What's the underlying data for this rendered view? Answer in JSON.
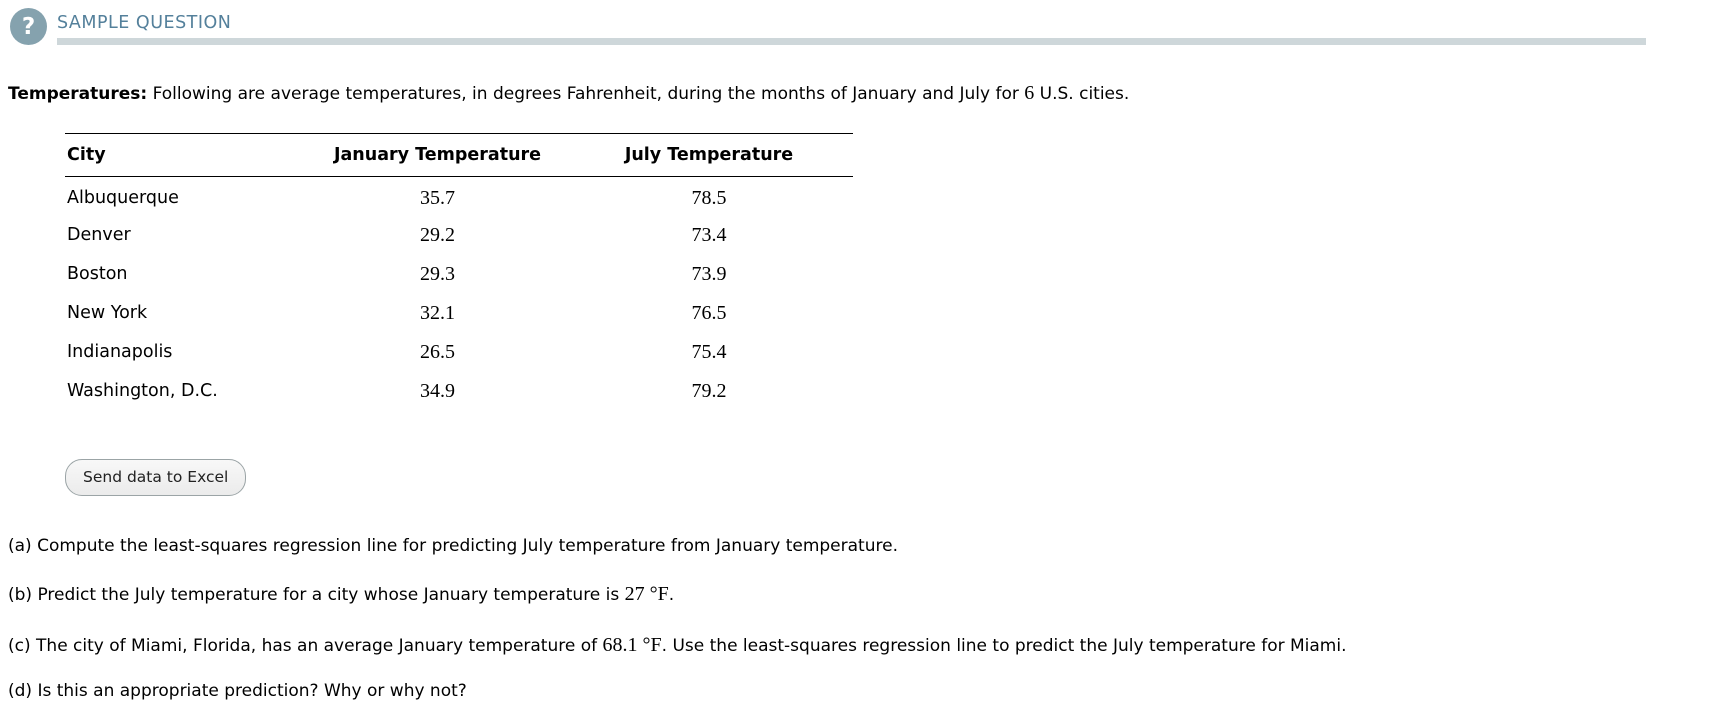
{
  "colors": {
    "accent_circle": "#85a2ae",
    "title_text": "#54809b",
    "title_bar": "#ced7da",
    "button_border": "#9ba4a6"
  },
  "header": {
    "icon_glyph": "?",
    "title": "SAMPLE QUESTION"
  },
  "problem": {
    "label": "Temperatures:",
    "text": "Following are average temperatures, in degrees Fahrenheit, during the months of January and July for",
    "count": "6",
    "tail": "U.S. cities."
  },
  "table": {
    "headers": {
      "city": "City",
      "january": "January Temperature",
      "july": "July Temperature"
    },
    "rows": [
      {
        "city": "Albuquerque",
        "january": "35.7",
        "july": "78.5"
      },
      {
        "city": "Denver",
        "january": "29.2",
        "july": "73.4"
      },
      {
        "city": "Boston",
        "january": "29.3",
        "july": "73.9"
      },
      {
        "city": "New York",
        "january": "32.1",
        "july": "76.5"
      },
      {
        "city": "Indianapolis",
        "january": "26.5",
        "july": "75.4"
      },
      {
        "city": "Washington, D.C.",
        "january": "34.9",
        "july": "79.2"
      }
    ]
  },
  "excel_button": {
    "label": "Send data to Excel"
  },
  "questions": {
    "a": {
      "label": "(a)",
      "text": "Compute the least-squares regression line for predicting July temperature from January temperature."
    },
    "b": {
      "label": "(b)",
      "text": "Predict the July temperature for a city whose January temperature is",
      "value": "27 °F",
      "tail": "."
    },
    "c": {
      "label": "(c)",
      "text": "The city of Miami, Florida, has an average January temperature of",
      "value": "68.1 °F",
      "tail": ". Use the least-squares regression line to predict the July temperature for Miami."
    },
    "d": {
      "label": "(d)",
      "text": "Is this an appropriate prediction? Why or why not?"
    }
  }
}
